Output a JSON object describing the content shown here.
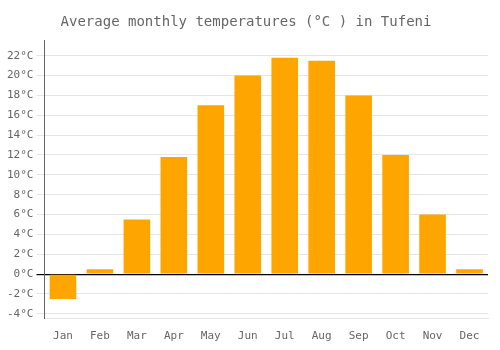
{
  "chart_data": {
    "type": "bar",
    "title": "Average monthly temperatures (°C ) in Tufeni",
    "categories": [
      "Jan",
      "Feb",
      "Mar",
      "Apr",
      "May",
      "Jun",
      "Jul",
      "Aug",
      "Sep",
      "Oct",
      "Nov",
      "Dec"
    ],
    "values": [
      -2.5,
      0.5,
      5.5,
      11.8,
      17.0,
      20.0,
      21.8,
      21.5,
      18.0,
      12.0,
      6.0,
      0.5
    ],
    "color": "#FFA500",
    "ylim": [
      -4.5,
      23.5
    ],
    "yticks": [
      {
        "value": -4,
        "label": "-4°C"
      },
      {
        "value": -2,
        "label": "-2°C"
      },
      {
        "value": 0,
        "label": "0°C"
      },
      {
        "value": 2,
        "label": "2°C"
      },
      {
        "value": 4,
        "label": "4°C"
      },
      {
        "value": 6,
        "label": "6°C"
      },
      {
        "value": 8,
        "label": "8°C"
      },
      {
        "value": 10,
        "label": "10°C"
      },
      {
        "value": 12,
        "label": "12°C"
      },
      {
        "value": 14,
        "label": "14°C"
      },
      {
        "value": 16,
        "label": "16°C"
      },
      {
        "value": 18,
        "label": "18°C"
      },
      {
        "value": 20,
        "label": "20°C"
      },
      {
        "value": 22,
        "label": "22°C"
      }
    ],
    "grid": true
  }
}
